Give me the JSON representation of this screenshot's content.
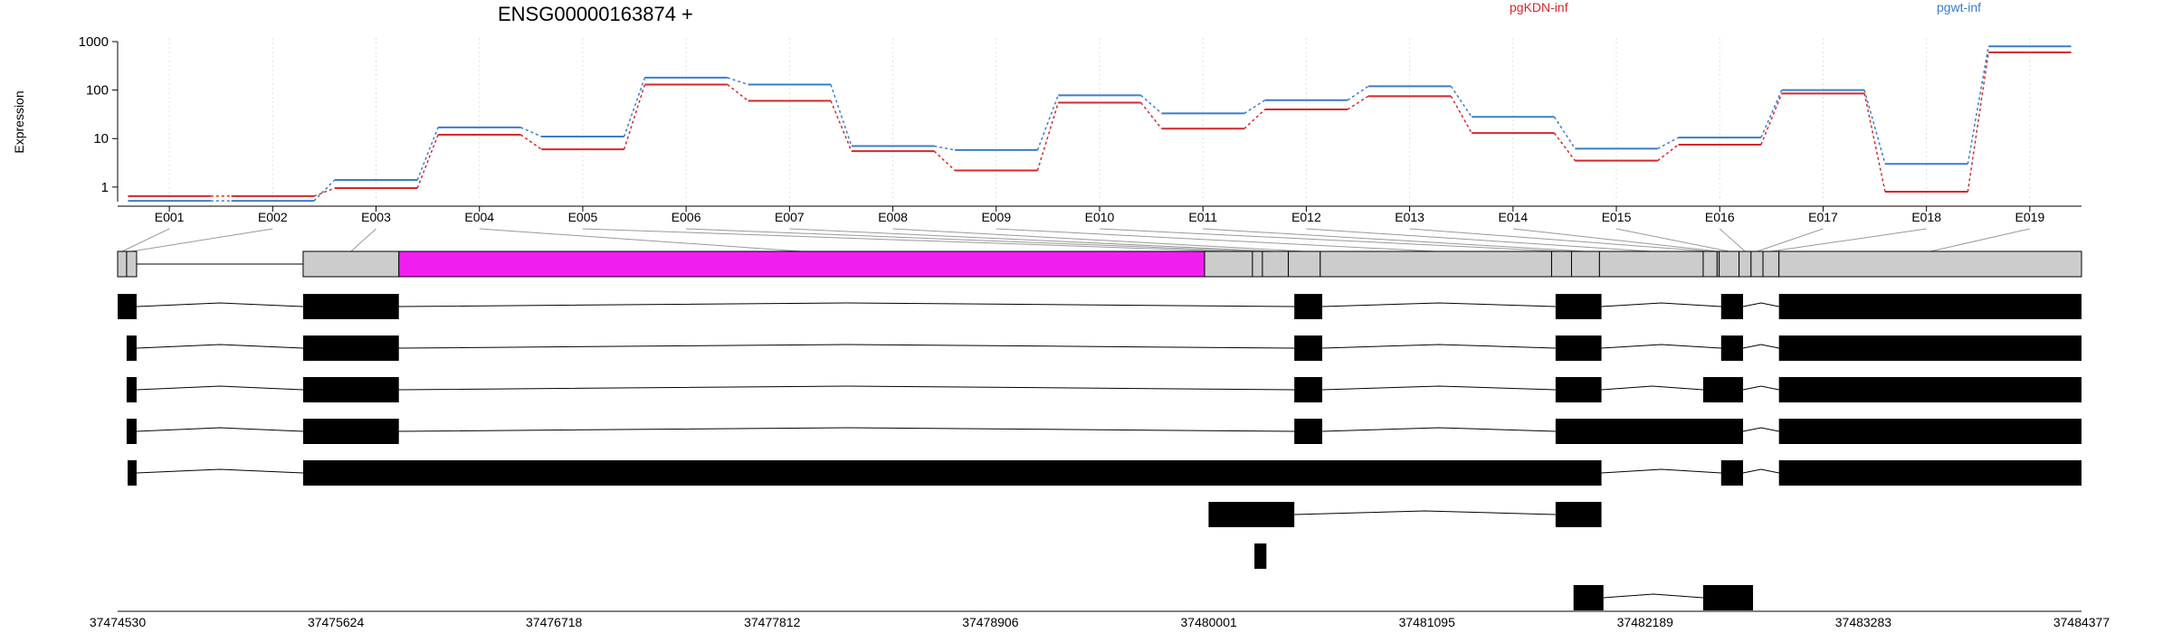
{
  "chart_data": {
    "type": "line",
    "title": "ENSG00000163874 +",
    "ylabel": "Expression",
    "y_scale": "log",
    "ylim": [
      0.5,
      1000
    ],
    "y_ticks": [
      "1",
      "10",
      "100",
      "1000"
    ],
    "y_tick_values": [
      1,
      10,
      100,
      1000
    ],
    "grid": "vertical dotted at each exon",
    "legend_placement": "top-right",
    "categories": [
      "E001",
      "E002",
      "E003",
      "E004",
      "E005",
      "E006",
      "E007",
      "E008",
      "E009",
      "E010",
      "E011",
      "E012",
      "E013",
      "E014",
      "E015",
      "E016",
      "E017",
      "E018",
      "E019"
    ],
    "series": [
      {
        "name": "pgKDN-inf",
        "color": "#d62728",
        "values": [
          0.65,
          0.65,
          0.95,
          12,
          6,
          130,
          60,
          5.5,
          2.2,
          55,
          16,
          40,
          75,
          13,
          3.5,
          7.5,
          85,
          0.8,
          600
        ]
      },
      {
        "name": "pgwt-inf",
        "color": "#3a7dc9",
        "values": [
          0.52,
          0.52,
          1.4,
          17,
          11,
          180,
          130,
          7,
          5.8,
          78,
          33,
          62,
          120,
          28,
          6.2,
          10.5,
          100,
          3,
          800
        ]
      }
    ],
    "x_axis": {
      "min": 37474530,
      "max": 37484377,
      "tick_labels": [
        "37474530",
        "37475624",
        "37476718",
        "37477812",
        "37478906",
        "37480001",
        "37481095",
        "37482189",
        "37483283",
        "37484377"
      ],
      "tick_values": [
        37474530,
        37475624,
        37476718,
        37477812,
        37478906,
        37480001,
        37481095,
        37482189,
        37483283,
        37484377
      ]
    },
    "gene_model": {
      "exons": [
        {
          "id": "E001",
          "start": 37474530,
          "end": 37474575
        },
        {
          "id": "E002",
          "start": 37474575,
          "end": 37474625
        },
        {
          "id": "E003",
          "start": 37475460,
          "end": 37475940
        },
        {
          "id": "E004",
          "start": 37475940,
          "end": 37479980
        },
        {
          "id": "E005",
          "start": 37479980,
          "end": 37480220
        },
        {
          "id": "E006",
          "start": 37480220,
          "end": 37480270
        },
        {
          "id": "E007",
          "start": 37480270,
          "end": 37480400
        },
        {
          "id": "E008",
          "start": 37480400,
          "end": 37480560
        },
        {
          "id": "E009",
          "start": 37480560,
          "end": 37481720
        },
        {
          "id": "E010",
          "start": 37481720,
          "end": 37481820
        },
        {
          "id": "E011",
          "start": 37481820,
          "end": 37481960
        },
        {
          "id": "E012",
          "start": 37481960,
          "end": 37482480
        },
        {
          "id": "E013",
          "start": 37482480,
          "end": 37482550
        },
        {
          "id": "E014",
          "start": 37482550,
          "end": 37482560
        },
        {
          "id": "E015",
          "start": 37482560,
          "end": 37482660
        },
        {
          "id": "E016",
          "start": 37482660,
          "end": 37482720
        },
        {
          "id": "E017",
          "start": 37482720,
          "end": 37482780
        },
        {
          "id": "E018",
          "start": 37482780,
          "end": 37482860
        },
        {
          "id": "E019",
          "start": 37482860,
          "end": 37484377
        }
      ],
      "highlight_exon": "E004",
      "highlight_color": "#f01ff0",
      "exon_color": "#cccccc"
    },
    "transcripts": [
      [
        [
          37474530,
          37474625
        ],
        [
          37475460,
          37475940
        ],
        [
          37480430,
          37480570
        ],
        [
          37481740,
          37481970
        ],
        [
          37482570,
          37482680
        ],
        [
          37482860,
          37484377
        ]
      ],
      [
        [
          37474575,
          37474625
        ],
        [
          37475460,
          37475940
        ],
        [
          37480430,
          37480570
        ],
        [
          37481740,
          37481970
        ],
        [
          37482570,
          37482680
        ],
        [
          37482860,
          37484377
        ]
      ],
      [
        [
          37474575,
          37474625
        ],
        [
          37475460,
          37475940
        ],
        [
          37480430,
          37480570
        ],
        [
          37481740,
          37481970
        ],
        [
          37482480,
          37482680
        ],
        [
          37482860,
          37484377
        ]
      ],
      [
        [
          37474575,
          37474625
        ],
        [
          37475460,
          37475940
        ],
        [
          37480430,
          37480570
        ],
        [
          37481740,
          37482680
        ],
        [
          37482860,
          37484377
        ]
      ],
      [
        [
          37474580,
          37474625
        ],
        [
          37475460,
          37481970
        ],
        [
          37482570,
          37482680
        ],
        [
          37482860,
          37484377
        ]
      ],
      [
        [
          37480000,
          37480430
        ],
        [
          37481740,
          37481970
        ]
      ],
      [
        [
          37480230,
          37480290
        ]
      ],
      [
        [
          37481830,
          37481980
        ],
        [
          37482480,
          37482730
        ]
      ]
    ]
  }
}
